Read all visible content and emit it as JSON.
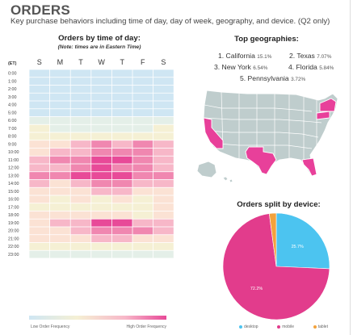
{
  "header": {
    "title": "ORDERS",
    "subtitle": "Key purchase behaviors including time of day, day of week, geography, and device. (Q2 only)"
  },
  "heatmap": {
    "title": "Orders by time of day:",
    "note": "(Note: times are in Eastern Time)",
    "corner_label": "(ET)",
    "days": [
      "S",
      "M",
      "T",
      "W",
      "T",
      "F",
      "S"
    ],
    "hours": [
      "0:00",
      "1:00",
      "2:00",
      "3:00",
      "4:00",
      "5:00",
      "6:00",
      "7:00",
      "8:00",
      "9:00",
      "10:00",
      "11:00",
      "12:00",
      "13:00",
      "14:00",
      "15:00",
      "16:00",
      "17:00",
      "18:00",
      "19:00",
      "20:00",
      "21:00",
      "22:00",
      "23:00"
    ],
    "legend_low": "Low Order Frequency",
    "legend_high": "High Order Frequency",
    "color_scale": [
      "#cfe6f3",
      "#e4efe8",
      "#f5f0d4",
      "#fbe2d4",
      "#f7b7c8",
      "#f087b0",
      "#e84a98"
    ],
    "levels": [
      [
        0,
        0,
        0,
        0,
        0,
        0,
        0
      ],
      [
        0,
        0,
        0,
        0,
        0,
        0,
        0
      ],
      [
        0,
        0,
        0,
        0,
        0,
        0,
        0
      ],
      [
        0,
        0,
        0,
        0,
        0,
        0,
        0
      ],
      [
        0,
        0,
        0,
        0,
        0,
        0,
        0
      ],
      [
        0,
        0,
        0,
        0,
        0,
        0,
        0
      ],
      [
        1,
        1,
        1,
        1,
        1,
        1,
        1
      ],
      [
        2,
        1,
        1,
        1,
        1,
        1,
        2
      ],
      [
        2,
        2,
        2,
        2,
        2,
        2,
        2
      ],
      [
        3,
        3,
        4,
        5,
        4,
        5,
        4
      ],
      [
        3,
        4,
        4,
        5,
        5,
        5,
        4
      ],
      [
        4,
        5,
        5,
        6,
        6,
        5,
        4
      ],
      [
        4,
        4,
        5,
        6,
        5,
        5,
        4
      ],
      [
        5,
        5,
        6,
        6,
        6,
        5,
        5
      ],
      [
        4,
        3,
        4,
        5,
        5,
        4,
        4
      ],
      [
        3,
        3,
        3,
        4,
        4,
        3,
        3
      ],
      [
        3,
        2,
        3,
        2,
        3,
        2,
        3
      ],
      [
        2,
        2,
        2,
        2,
        2,
        2,
        3
      ],
      [
        3,
        3,
        3,
        3,
        3,
        2,
        3
      ],
      [
        3,
        4,
        4,
        6,
        6,
        4,
        4
      ],
      [
        3,
        3,
        4,
        5,
        5,
        5,
        4
      ],
      [
        3,
        3,
        3,
        4,
        4,
        3,
        3
      ],
      [
        2,
        2,
        2,
        2,
        2,
        2,
        2
      ],
      [
        1,
        1,
        1,
        1,
        1,
        1,
        1
      ]
    ]
  },
  "geographies": {
    "title": "Top geographies:",
    "rank1": {
      "name": "1. California",
      "pct": "15.1%"
    },
    "rank2": {
      "name": "2. Texas",
      "pct": "7.07%"
    },
    "rank3": {
      "name": "3. New York",
      "pct": "6.54%"
    },
    "rank4": {
      "name": "4. Florida",
      "pct": "5.84%"
    },
    "rank5": {
      "name": "5. Pennsylvania",
      "pct": "3.72%"
    },
    "map_colors": {
      "base": "#bfcdcd",
      "highlight": "#e8409a",
      "border": "#ffffff"
    }
  },
  "chart_data": {
    "type": "pie",
    "title": "Orders split by device:",
    "labels": [
      "desktop",
      "mobile",
      "tablet"
    ],
    "values": [
      25.7,
      72.2,
      2.1
    ],
    "value_labels": [
      "25.7%",
      "72.2%",
      ""
    ],
    "colors": [
      "#4cc4f0",
      "#e23c8c",
      "#f3a23c"
    ],
    "legend_position": "bottom"
  }
}
